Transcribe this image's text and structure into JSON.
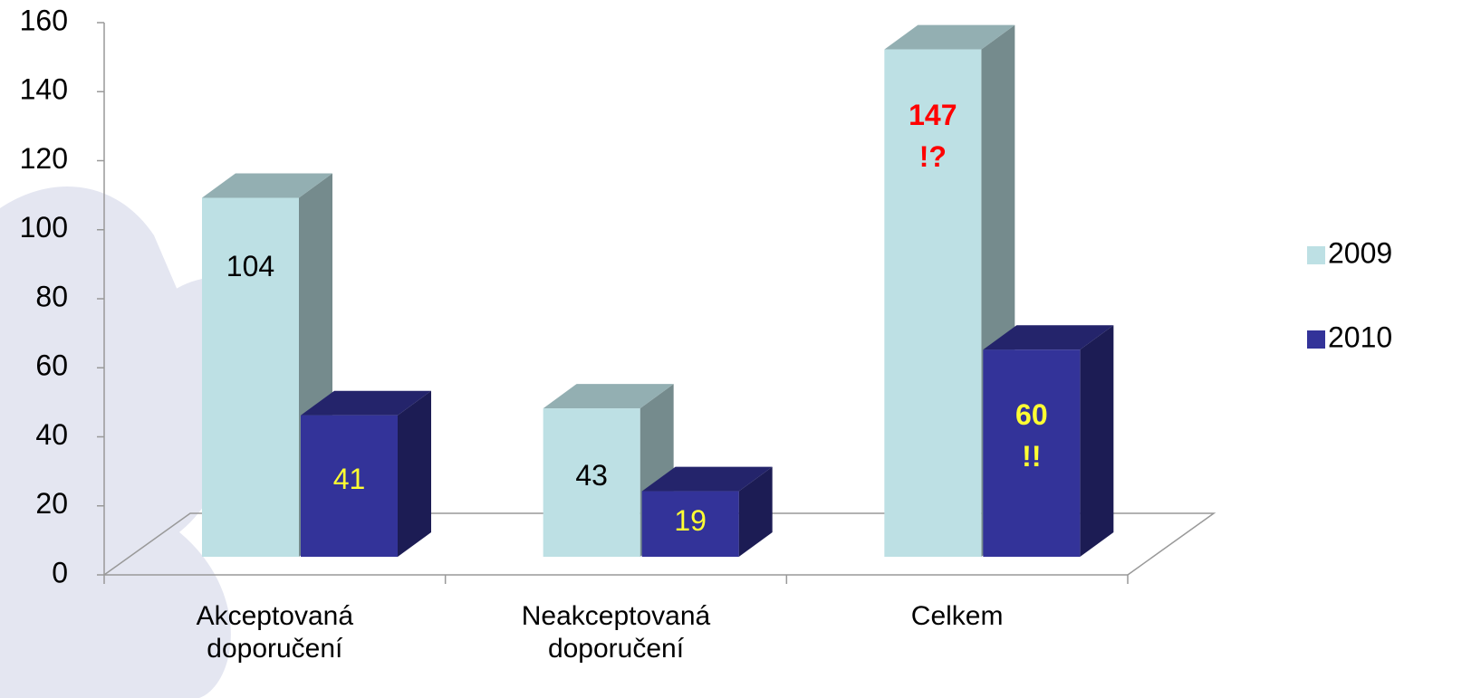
{
  "chart_data": {
    "type": "bar3d",
    "categories": [
      "Akceptovaná\ndoporučení",
      "Neakceptovaná\ndoporučení",
      "Celkem"
    ],
    "series": [
      {
        "name": "2009",
        "color": "#bde0e4",
        "values": [
          104,
          43,
          147
        ],
        "value_labels": [
          "104",
          "43",
          "147\n!?"
        ],
        "label_colors": [
          "#000000",
          "#000000",
          "#ff0000"
        ],
        "label_bold": [
          false,
          false,
          true
        ]
      },
      {
        "name": "2010",
        "color": "#333399",
        "values": [
          41,
          19,
          60
        ],
        "value_labels": [
          "41",
          "19",
          "60\n!!"
        ],
        "label_colors": [
          "#ffff33",
          "#ffff33",
          "#ffff33"
        ],
        "label_bold": [
          false,
          false,
          true
        ]
      }
    ],
    "ylim": [
      0,
      160
    ],
    "yticks": [
      0,
      20,
      40,
      60,
      80,
      100,
      120,
      140,
      160
    ],
    "legend": "right"
  }
}
